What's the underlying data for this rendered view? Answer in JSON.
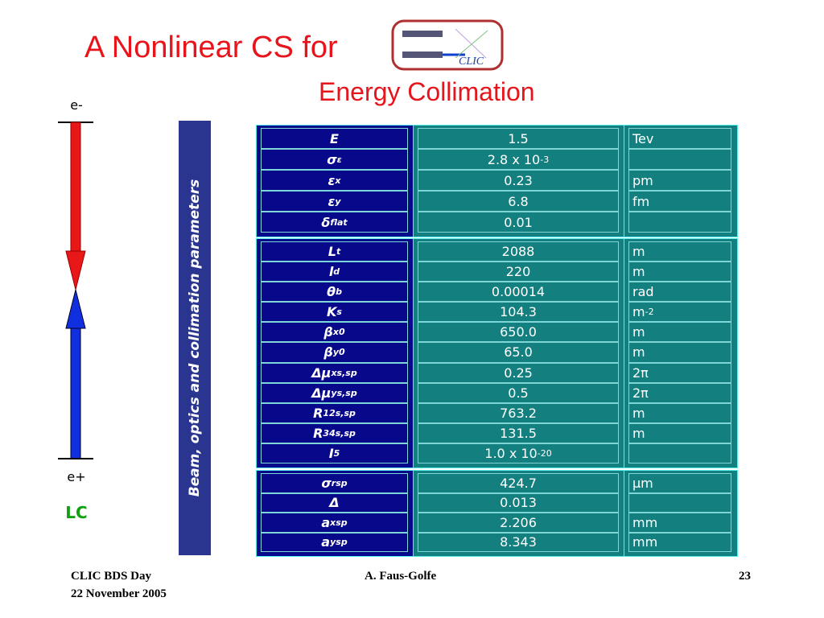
{
  "header": {
    "title": "A Nonlinear CS for",
    "logo_text": "CLIC",
    "subtitle": "Energy Collimation"
  },
  "diagram": {
    "top_label": "e-",
    "bottom_label": "e+",
    "caption": "LC"
  },
  "side_label": "Beam, optics and collimation parameters",
  "table": {
    "groups": [
      {
        "rows": [
          {
            "symbol": {
              "base": "E"
            },
            "value": {
              "base": "1.5"
            },
            "unit": {
              "base": "Tev"
            }
          },
          {
            "symbol": {
              "base": "σ",
              "sub": "ε"
            },
            "value": {
              "base": "2.8 x 10",
              "sup": "-3"
            }
          },
          {
            "symbol": {
              "base": "ε",
              "sub": "x"
            },
            "value": {
              "base": "0.23"
            },
            "unit": {
              "base": "pm"
            }
          },
          {
            "symbol": {
              "base": "ε",
              "sub": "y"
            },
            "value": {
              "base": "6.8"
            },
            "unit": {
              "base": "fm"
            }
          },
          {
            "symbol": {
              "base": "δ",
              "sub": "flat"
            },
            "value": {
              "base": "0.01"
            }
          }
        ]
      },
      {
        "rows": [
          {
            "symbol": {
              "base": "L",
              "sub": "t"
            },
            "value": {
              "base": "2088"
            },
            "unit": {
              "base": "m"
            }
          },
          {
            "symbol": {
              "base": "l",
              "sub": "d"
            },
            "value": {
              "base": "220"
            },
            "unit": {
              "base": "m"
            }
          },
          {
            "symbol": {
              "base": "θ",
              "sub": "b"
            },
            "value": {
              "base": "0.00014"
            },
            "unit": {
              "base": "rad"
            }
          },
          {
            "symbol": {
              "base": "K",
              "sub": "s"
            },
            "value": {
              "base": "104.3"
            },
            "unit": {
              "base": "m",
              "sup": "-2"
            }
          },
          {
            "symbol": {
              "base": "β",
              "sub": "x",
              "sup": "0"
            },
            "value": {
              "base": "650.0"
            },
            "unit": {
              "base": "m"
            }
          },
          {
            "symbol": {
              "base": "β",
              "sub": "y",
              "sup": "0"
            },
            "value": {
              "base": "65.0"
            },
            "unit": {
              "base": "m"
            }
          },
          {
            "symbol": {
              "base": "Δμ",
              "sub": "x",
              "sup": "s,sp"
            },
            "value": {
              "base": "0.25"
            },
            "unit": {
              "base": "2π"
            }
          },
          {
            "symbol": {
              "base": "Δμ",
              "sub": "y",
              "sup": "s,sp"
            },
            "value": {
              "base": "0.5"
            },
            "unit": {
              "base": "2π"
            }
          },
          {
            "symbol": {
              "base": "R",
              "sub": "12",
              "sup": "s,sp"
            },
            "value": {
              "base": "763.2"
            },
            "unit": {
              "base": "m"
            }
          },
          {
            "symbol": {
              "base": "R",
              "sub": "34",
              "sup": "s,sp"
            },
            "value": {
              "base": "131.5"
            },
            "unit": {
              "base": "m"
            }
          },
          {
            "symbol": {
              "base": "I",
              "sub": "5"
            },
            "value": {
              "base": "1.0 x 10",
              "sup": "-20"
            }
          }
        ]
      },
      {
        "rows": [
          {
            "symbol": {
              "base": "σ",
              "sub": "r",
              "sup": "sp"
            },
            "value": {
              "base": "424.7"
            },
            "unit": {
              "base": "μm"
            }
          },
          {
            "symbol": {
              "base": "Δ"
            },
            "value": {
              "base": "0.013"
            }
          },
          {
            "symbol": {
              "base": "a",
              "sub": "x",
              "sup": "sp"
            },
            "value": {
              "base": "2.206"
            },
            "unit": {
              "base": "mm"
            }
          },
          {
            "symbol": {
              "base": "a",
              "sub": "y",
              "sup": "sp"
            },
            "value": {
              "base": "8.343"
            },
            "unit": {
              "base": "mm"
            }
          }
        ]
      }
    ]
  },
  "footer": {
    "event": "CLIC BDS Day",
    "date": "22 November 2005",
    "author": "A. Faus-Golfe",
    "page": "23"
  }
}
